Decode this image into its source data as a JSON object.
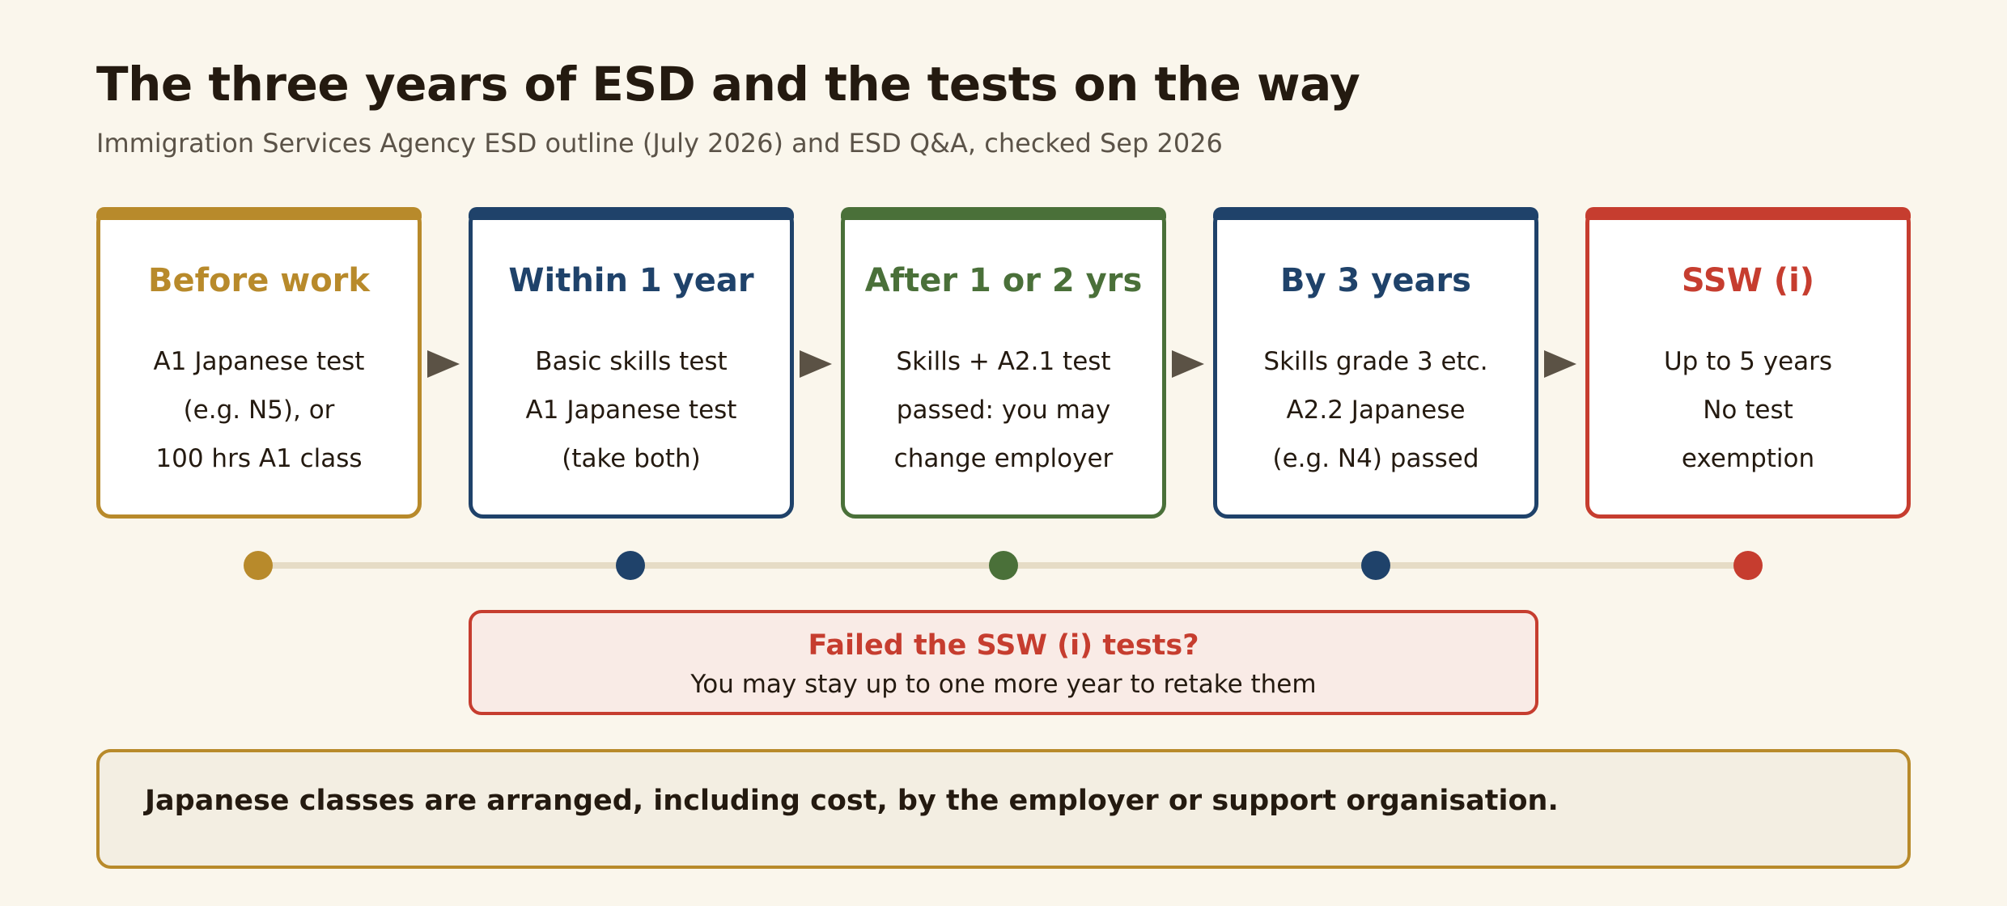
{
  "header": {
    "title": "The three years of ESD and the tests on the way",
    "subtitle": "Immigration Services Agency ESD outline (July 2026) and ESD Q&A, checked Sep 2026"
  },
  "colors": {
    "gold": "#b88a2b",
    "navy": "#1f426a",
    "green": "#4a7039",
    "red": "#c63d2f",
    "arrow": "#5b5245",
    "track": "#e6dcc6"
  },
  "stages": [
    {
      "title": "Before work",
      "lines": [
        "A1 Japanese test",
        "(e.g. N5), or",
        "100 hrs A1 class"
      ]
    },
    {
      "title": "Within 1 year",
      "lines": [
        "Basic skills test",
        "A1 Japanese test",
        "(take both)"
      ]
    },
    {
      "title": "After 1 or 2 yrs",
      "lines": [
        "Skills + A2.1 test",
        "passed: you may",
        "change employer"
      ]
    },
    {
      "title": "By 3 years",
      "lines": [
        "Skills grade 3 etc.",
        "A2.2 Japanese",
        "(e.g. N4) passed"
      ]
    },
    {
      "title": "SSW (i)",
      "lines": [
        "Up to 5 years",
        "No test",
        "exemption"
      ]
    }
  ],
  "callout": {
    "title": "Failed the SSW (i) tests?",
    "body": "You may stay up to one more year to retake them"
  },
  "note": {
    "text": "Japanese classes are arranged, including cost, by the employer or support organisation."
  }
}
